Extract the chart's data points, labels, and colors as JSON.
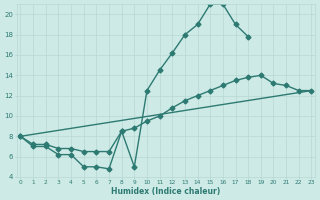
{
  "x_all": [
    0,
    1,
    2,
    3,
    4,
    5,
    6,
    7,
    8,
    9,
    10,
    11,
    12,
    13,
    14,
    15,
    16,
    17,
    18,
    19,
    20,
    21,
    22,
    23
  ],
  "line1": [
    8.0,
    7.0,
    7.0,
    6.2,
    6.2,
    5.0,
    5.0,
    4.8,
    8.5,
    5.0,
    12.5,
    14.5,
    16.2,
    18.0,
    19.0,
    21.0,
    21.0,
    19.0,
    17.8,
    null,
    null,
    null,
    null,
    null
  ],
  "line2": [
    8.0,
    7.2,
    7.2,
    6.8,
    6.8,
    6.5,
    6.5,
    6.5,
    8.5,
    8.8,
    9.5,
    10.0,
    10.8,
    11.5,
    12.0,
    12.5,
    13.0,
    13.5,
    13.8,
    14.0,
    13.2,
    13.0,
    12.5,
    12.5
  ],
  "line3_x": [
    0,
    23
  ],
  "line3_y": [
    8.0,
    12.5
  ],
  "bg_color": "#ceeae6",
  "line_color": "#2d7a72",
  "grid_major_color": "#b8d8d4",
  "grid_minor_color": "#d0ecea",
  "xlabel": "Humidex (Indice chaleur)",
  "xlim": [
    0,
    23
  ],
  "ylim": [
    4,
    21
  ],
  "yticks": [
    4,
    6,
    8,
    10,
    12,
    14,
    16,
    18,
    20
  ],
  "xticks": [
    0,
    1,
    2,
    3,
    4,
    5,
    6,
    7,
    8,
    9,
    10,
    11,
    12,
    13,
    14,
    15,
    16,
    17,
    18,
    19,
    20,
    21,
    22,
    23
  ],
  "marker": "D",
  "markersize": 2.5,
  "linewidth": 1.0
}
